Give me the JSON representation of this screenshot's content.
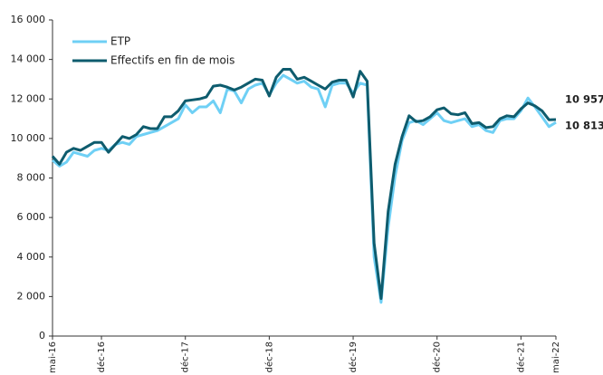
{
  "chart_data": {
    "type": "line",
    "categories": [
      "mai-16",
      null,
      null,
      null,
      null,
      null,
      null,
      "déc-16",
      null,
      null,
      null,
      null,
      null,
      null,
      null,
      null,
      null,
      null,
      null,
      "déc-17",
      null,
      null,
      null,
      null,
      null,
      null,
      null,
      null,
      null,
      null,
      null,
      "déc-18",
      null,
      null,
      null,
      null,
      null,
      null,
      null,
      null,
      null,
      null,
      null,
      "déc-19",
      null,
      null,
      null,
      null,
      null,
      null,
      null,
      null,
      null,
      null,
      null,
      "déc-20",
      null,
      null,
      null,
      null,
      null,
      null,
      null,
      null,
      null,
      null,
      null,
      "déc-21",
      null,
      null,
      null,
      null,
      "mai-22"
    ],
    "series": [
      {
        "name": "ETP",
        "color": "#6fd0f5",
        "values": [
          8900,
          8600,
          8800,
          9300,
          9200,
          9100,
          9400,
          9500,
          9400,
          9700,
          9800,
          9700,
          10100,
          10200,
          10300,
          10400,
          10600,
          10800,
          11000,
          11700,
          11300,
          11600,
          11600,
          11900,
          11300,
          12500,
          12400,
          11800,
          12500,
          12700,
          12800,
          12200,
          12800,
          13200,
          13000,
          12800,
          12900,
          12600,
          12500,
          11600,
          12700,
          12800,
          12800,
          12300,
          12800,
          12700,
          4000,
          1700,
          5500,
          8100,
          9900,
          10800,
          10900,
          10700,
          11000,
          11300,
          10900,
          10800,
          10900,
          11000,
          10600,
          10700,
          10400,
          10300,
          10900,
          11000,
          11000,
          11400,
          12050,
          11600,
          11100,
          10600,
          10813
        ],
        "value_labels": [
          null,
          null,
          null,
          null,
          null,
          null,
          null,
          null,
          null,
          null,
          null,
          null,
          null,
          null,
          null,
          null,
          null,
          null,
          null,
          null,
          null,
          null,
          null,
          null,
          null,
          null,
          null,
          null,
          null,
          null,
          null,
          null,
          null,
          null,
          null,
          null,
          null,
          null,
          null,
          null,
          null,
          null,
          null,
          null,
          null,
          null,
          null,
          null,
          null,
          null,
          null,
          null,
          null,
          null,
          null,
          null,
          null,
          null,
          null,
          null,
          null,
          null,
          null,
          null,
          null,
          null,
          null,
          null,
          null,
          null,
          null,
          null,
          "10 813"
        ]
      },
      {
        "name": "Effectifs en fin de mois",
        "color": "#0e5c6e",
        "values": [
          9100,
          8700,
          9300,
          9500,
          9400,
          9600,
          9800,
          9800,
          9300,
          9700,
          10100,
          10000,
          10200,
          10600,
          10500,
          10500,
          11100,
          11100,
          11400,
          11900,
          11950,
          12000,
          12100,
          12650,
          12700,
          12600,
          12450,
          12600,
          12800,
          13000,
          12950,
          12150,
          13100,
          13500,
          13500,
          13000,
          13100,
          12900,
          12700,
          12500,
          12850,
          12950,
          12950,
          12100,
          13400,
          12900,
          4700,
          1900,
          6300,
          8700,
          10100,
          11150,
          10850,
          10900,
          11100,
          11450,
          11550,
          11250,
          11200,
          11300,
          10750,
          10800,
          10550,
          10600,
          11000,
          11150,
          11100,
          11500,
          11800,
          11650,
          11400,
          10950,
          10957
        ],
        "value_labels": [
          null,
          null,
          null,
          null,
          null,
          null,
          null,
          null,
          null,
          null,
          null,
          null,
          null,
          null,
          null,
          null,
          null,
          null,
          null,
          null,
          null,
          null,
          null,
          null,
          null,
          null,
          null,
          null,
          null,
          null,
          null,
          null,
          null,
          null,
          null,
          null,
          null,
          null,
          null,
          null,
          null,
          null,
          null,
          null,
          null,
          null,
          null,
          null,
          null,
          null,
          null,
          null,
          null,
          null,
          null,
          null,
          null,
          null,
          null,
          null,
          null,
          null,
          null,
          null,
          null,
          null,
          null,
          null,
          null,
          null,
          null,
          null,
          "10 957"
        ]
      }
    ],
    "ylim": [
      0,
      16000
    ],
    "yticks": [
      0,
      {
        "value": 2000,
        "label": "2 000"
      },
      {
        "value": 4000,
        "label": "4 000"
      },
      {
        "value": 6000,
        "label": "6 000"
      },
      {
        "value": 8000,
        "label": "8 000"
      },
      {
        "value": 10000,
        "label": "10 000"
      },
      {
        "value": 12000,
        "label": "12 000"
      },
      {
        "value": 14000,
        "label": "14 000"
      },
      {
        "value": 16000,
        "label": "16 000"
      }
    ],
    "legend": "upper left",
    "grid": false
  }
}
